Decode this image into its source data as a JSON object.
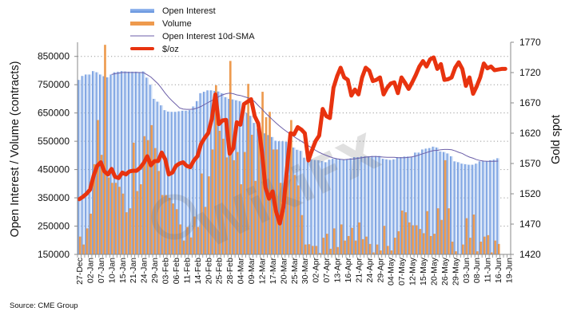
{
  "source": "Source: CME Group",
  "watermark": "WikiFX",
  "chart_data": {
    "type": "bar",
    "title": "",
    "xlabel": "",
    "ylabel": "Open Interest / Volume (contracts)",
    "ylabel_right": "Gold spot",
    "grid": true,
    "legend": {
      "position": "top-left"
    },
    "y_left": {
      "min": 150000,
      "max": 900000,
      "ticks": [
        150000,
        250000,
        350000,
        450000,
        550000,
        650000,
        750000,
        850000
      ]
    },
    "y_right": {
      "min": 1420,
      "max": 1770,
      "ticks": [
        1420,
        1470,
        1520,
        1570,
        1620,
        1670,
        1720,
        1770
      ]
    },
    "label_every": 3,
    "x_tick_labels": [
      "27-Dec",
      "02-Jan",
      "07-Jan",
      "10-Jan",
      "15-Jan",
      "21-Jan",
      "24-Jan",
      "29-Jan",
      "03-Feb",
      "06-Feb",
      "11-Feb",
      "14-Feb",
      "20-Feb",
      "25-Feb",
      "28-Feb",
      "04-Mar",
      "09-Mar",
      "12-Mar",
      "17-Mar",
      "20-Mar",
      "25-Mar",
      "30-Mar",
      "02-Apr",
      "07-Apr",
      "13-Apr",
      "16-Apr",
      "21-Apr",
      "24-Apr",
      "29-Apr",
      "04-May",
      "07-May",
      "12-May",
      "15-May",
      "20-May",
      "26-May",
      "29-May",
      "03-Jun",
      "08-Jun",
      "11-Jun",
      "16-Jun",
      "19-Jun"
    ],
    "series": [
      {
        "name": "Open Interest",
        "type": "bar",
        "axis": "left",
        "color": "#7fa3e0",
        "color_light": "#d3e2f7",
        "values": [
          767000,
          781000,
          786000,
          786000,
          798000,
          794000,
          786000,
          780000,
          776000,
          786000,
          794000,
          796000,
          798000,
          797000,
          796000,
          796000,
          796000,
          794000,
          797000,
          775000,
          750000,
          700000,
          690000,
          677000,
          660000,
          655000,
          654000,
          654000,
          656000,
          658000,
          658000,
          660000,
          673000,
          692000,
          720000,
          725000,
          730000,
          730000,
          728000,
          726000,
          720000,
          706000,
          700000,
          698000,
          695000,
          692000,
          680000,
          650000,
          640000,
          615000,
          595000,
          583000,
          578000,
          572000,
          565000,
          552000,
          550000,
          550000,
          548000,
          535000,
          528000,
          520000,
          516000,
          492000,
          488000,
          486000,
          484000,
          483000,
          480000,
          476000,
          485000,
          488000,
          488000,
          486000,
          485000,
          487000,
          490000,
          494000,
          494000,
          496000,
          497000,
          497000,
          498000,
          498000,
          498000,
          488000,
          486000,
          484000,
          486000,
          494000,
          494000,
          496000,
          496000,
          494000,
          510000,
          510000,
          521000,
          524000,
          526000,
          531000,
          528000,
          514000,
          512000,
          507000,
          497000,
          479000,
          476000,
          471000,
          469000,
          467000,
          467000,
          471000,
          479000,
          480000,
          480000,
          483000,
          485000,
          490000,
          null,
          null,
          null
        ]
      },
      {
        "name": "Volume",
        "type": "bar",
        "axis": "left",
        "color": "#ee9a4d",
        "values": [
          213000,
          185000,
          242000,
          294000,
          469000,
          625000,
          502000,
          891000,
          422000,
          403000,
          403000,
          389000,
          365000,
          299000,
          313000,
          545000,
          374000,
          398000,
          568000,
          554000,
          607000,
          526000,
          445000,
          360000,
          360000,
          350000,
          330000,
          310000,
          256000,
          199000,
          247000,
          210000,
          284000,
          247000,
          436000,
          318000,
          426000,
          521000,
          748000,
          587000,
          559000,
          493000,
          834000,
          483000,
          512000,
          398000,
          512000,
          753000,
          573000,
          410000,
          560000,
          725000,
          635000,
          654000,
          521000,
          521000,
          403000,
          384000,
          431000,
          625000,
          431000,
          394000,
          289000,
          185000,
          186000,
          180000,
          180000,
          155000,
          209000,
          223000,
          170000,
          242000,
          176000,
          256000,
          199000,
          215000,
          244000,
          199000,
          263000,
          204000,
          213000,
          187000,
          157000,
          185000,
          164000,
          251000,
          180000,
          164000,
          209000,
          232000,
          305000,
          299000,
          263000,
          253000,
          253000,
          240000,
          225000,
          303000,
          215000,
          223000,
          313000,
          272000,
          483000,
          313000,
          195000,
          161000,
          148000,
          185000,
          278000,
          209000,
          291000,
          161000,
          195000,
          213000,
          218000,
          157000,
          199000,
          187000,
          null,
          null,
          null
        ]
      },
      {
        "name": "Open Interest 10d-SMA",
        "type": "line",
        "axis": "left",
        "color": "#6b5ea8",
        "values": [
          null,
          null,
          null,
          null,
          null,
          null,
          null,
          null,
          null,
          786000,
          789000,
          791000,
          793000,
          793000,
          793000,
          793000,
          793000,
          793000,
          792000,
          785000,
          777000,
          765000,
          753000,
          737000,
          720000,
          705000,
          692000,
          680000,
          668000,
          664000,
          663000,
          663000,
          664000,
          668000,
          673000,
          680000,
          687000,
          694000,
          700000,
          708000,
          714000,
          718000,
          720000,
          718000,
          714000,
          712000,
          708000,
          704000,
          700000,
          690000,
          676000,
          664000,
          650000,
          638000,
          626000,
          614000,
          603000,
          593000,
          584000,
          575000,
          566000,
          558000,
          550000,
          542000,
          534000,
          526000,
          518000,
          511000,
          505000,
          500000,
          495000,
          491000,
          488000,
          486000,
          485000,
          486000,
          487000,
          488000,
          490000,
          492000,
          494000,
          495000,
          496000,
          496000,
          495000,
          494000,
          493000,
          493000,
          493000,
          492000,
          492000,
          492000,
          493000,
          495000,
          498000,
          502000,
          506000,
          510000,
          514000,
          517000,
          518000,
          520000,
          521000,
          521000,
          520000,
          516000,
          511000,
          507000,
          500000,
          494000,
          490000,
          485000,
          482000,
          480000,
          479000,
          479000,
          479000,
          480000,
          null,
          null,
          null
        ]
      },
      {
        "name": "$/oz",
        "type": "line",
        "axis": "right",
        "color": "#e8330f",
        "values": [
          1511,
          1515,
          1520,
          1527,
          1550,
          1566,
          1572,
          1557,
          1552,
          1561,
          1548,
          1546,
          1555,
          1552,
          1557,
          1558,
          1558,
          1563,
          1571,
          1582,
          1567,
          1574,
          1574,
          1588,
          1577,
          1552,
          1555,
          1566,
          1570,
          1572,
          1566,
          1564,
          1575,
          1582,
          1602,
          1612,
          1620,
          1643,
          1684,
          1635,
          1641,
          1642,
          1586,
          1595,
          1638,
          1634,
          1668,
          1672,
          1676,
          1648,
          1636,
          1590,
          1530,
          1512,
          1524,
          1490,
          1471,
          1498,
          1560,
          1620,
          1618,
          1630,
          1626,
          1620,
          1575,
          1592,
          1607,
          1616,
          1660,
          1648,
          1645,
          1695,
          1714,
          1728,
          1712,
          1708,
          1682,
          1692,
          1684,
          1712,
          1728,
          1723,
          1706,
          1708,
          1712,
          1684,
          1695,
          1702,
          1704,
          1686,
          1712,
          1703,
          1693,
          1704,
          1716,
          1730,
          1739,
          1730,
          1742,
          1745,
          1726,
          1734,
          1708,
          1709,
          1712,
          1728,
          1737,
          1726,
          1698,
          1712,
          1685,
          1697,
          1712,
          1735,
          1727,
          1730,
          1724,
          1725,
          1726,
          1726,
          null
        ]
      }
    ]
  }
}
